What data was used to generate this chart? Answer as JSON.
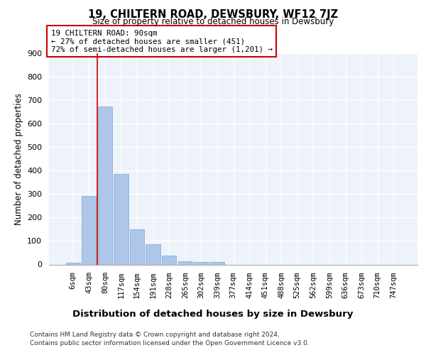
{
  "title": "19, CHILTERN ROAD, DEWSBURY, WF12 7JZ",
  "subtitle": "Size of property relative to detached houses in Dewsbury",
  "xlabel": "Distribution of detached houses by size in Dewsbury",
  "ylabel": "Number of detached properties",
  "bar_labels": [
    "6sqm",
    "43sqm",
    "80sqm",
    "117sqm",
    "154sqm",
    "191sqm",
    "228sqm",
    "265sqm",
    "302sqm",
    "339sqm",
    "377sqm",
    "414sqm",
    "451sqm",
    "488sqm",
    "525sqm",
    "562sqm",
    "599sqm",
    "636sqm",
    "673sqm",
    "710sqm",
    "747sqm"
  ],
  "bar_values": [
    8,
    293,
    672,
    385,
    150,
    85,
    37,
    13,
    12,
    10,
    0,
    0,
    0,
    0,
    0,
    0,
    0,
    0,
    0,
    0,
    0
  ],
  "bar_color": "#aec6e8",
  "bar_edge_color": "#7aaad0",
  "background_color": "#edf2fb",
  "grid_color": "#ffffff",
  "red_line_color": "#cc0000",
  "annotation_border_color": "#cc0000",
  "property_label": "19 CHILTERN ROAD: 90sqm",
  "annotation_line1": "← 27% of detached houses are smaller (451)",
  "annotation_line2": "72% of semi-detached houses are larger (1,201) →",
  "ylim": [
    0,
    900
  ],
  "yticks": [
    0,
    100,
    200,
    300,
    400,
    500,
    600,
    700,
    800,
    900
  ],
  "red_line_bar_index": 2,
  "footer_line1": "Contains HM Land Registry data © Crown copyright and database right 2024.",
  "footer_line2": "Contains public sector information licensed under the Open Government Licence v3.0."
}
